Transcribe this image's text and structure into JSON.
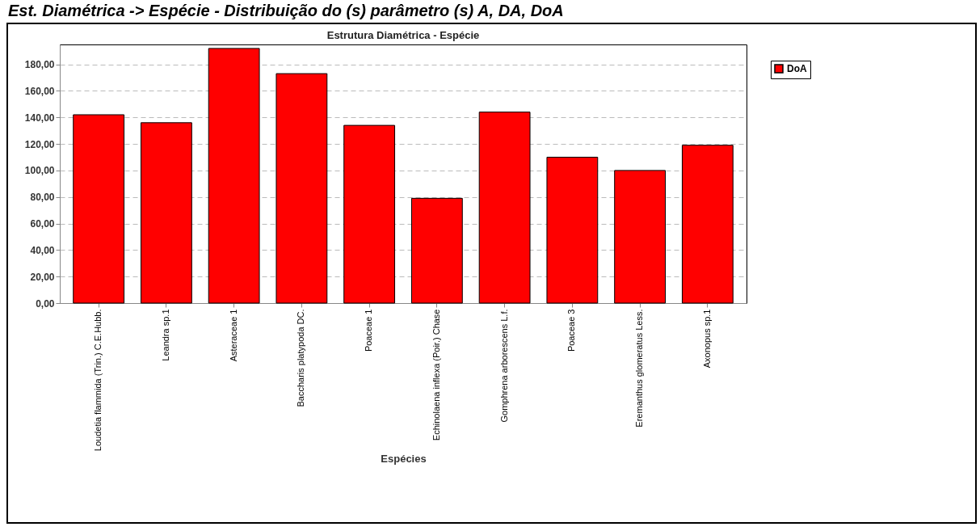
{
  "chart_data": {
    "type": "bar",
    "title": "Est. Diamétrica -> Espécie - Distribuição do (s) parâmetro (s) A, DA, DoA",
    "subtitle": "Estrutura Diamétrica - Espécie",
    "xlabel": "Espécies",
    "categories": [
      "Loudetia flammida (Trin.) C.E.Hubb.",
      "Leandra sp.1",
      "Asteraceae 1",
      "Baccharis platypoda DC.",
      "Poaceae 1",
      "Echinolaena inflexa (Poir.) Chase",
      "Gomphrena arborescens L.f.",
      "Poaceae 3",
      "Eremanthus glomeratus Less.",
      "Axonopus sp.1"
    ],
    "series": [
      {
        "name": "DoA",
        "color": "#ff0000",
        "values": [
          142,
          136,
          192,
          173,
          134,
          79,
          144,
          110,
          100,
          119
        ]
      }
    ],
    "ylim": [
      0,
      195
    ],
    "yticks": [
      {
        "value": 0,
        "label": "0,00"
      },
      {
        "value": 20,
        "label": "20,00"
      },
      {
        "value": 40,
        "label": "40,00"
      },
      {
        "value": 60,
        "label": "60,00"
      },
      {
        "value": 80,
        "label": "80,00"
      },
      {
        "value": 100,
        "label": "100,00"
      },
      {
        "value": 120,
        "label": "120,00"
      },
      {
        "value": 140,
        "label": "140,00"
      },
      {
        "value": 160,
        "label": "160,00"
      },
      {
        "value": 180,
        "label": "180,00"
      }
    ],
    "grid": "y",
    "legend": "top right"
  }
}
